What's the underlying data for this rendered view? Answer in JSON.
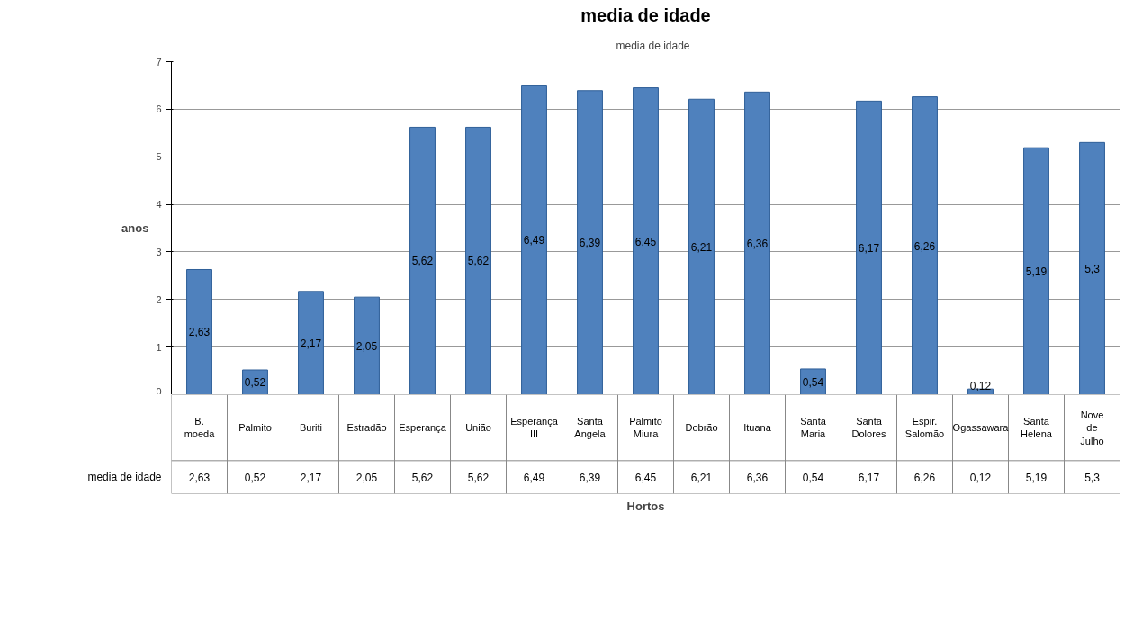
{
  "chart_data": {
    "type": "bar",
    "title": "media de idade",
    "xlabel": "Hortos",
    "ylabel": "anos",
    "categories": [
      "B. moeda",
      "Palmito",
      "Buriti",
      "Estradão",
      "Esperança",
      "União",
      "Esperança III",
      "Santa Angela",
      "Palmito Miura",
      "Dobrão",
      "Ituana",
      "Santa Maria",
      "Santa Dolores",
      "Espir. Salomão",
      "Ogassawara",
      "Santa Helena",
      "Nove de Julho"
    ],
    "series": [
      {
        "name": "media de idade",
        "color": "#4f81bd",
        "values": [
          2.63,
          0.52,
          2.17,
          2.05,
          5.62,
          5.62,
          6.49,
          6.39,
          6.45,
          6.21,
          6.36,
          0.54,
          6.17,
          6.26,
          0.12,
          5.19,
          5.3
        ]
      }
    ],
    "value_labels": [
      "2,63",
      "0,52",
      "2,17",
      "2,05",
      "5,62",
      "5,62",
      "6,49",
      "6,39",
      "6,45",
      "6,21",
      "6,36",
      "0,54",
      "6,17",
      "6,26",
      "0,12",
      "5,19",
      "5,3"
    ],
    "ylim": [
      0,
      7
    ],
    "yticks": [
      0,
      1,
      2,
      3,
      4,
      5,
      6,
      7
    ],
    "grid": "y",
    "legend": "top"
  }
}
